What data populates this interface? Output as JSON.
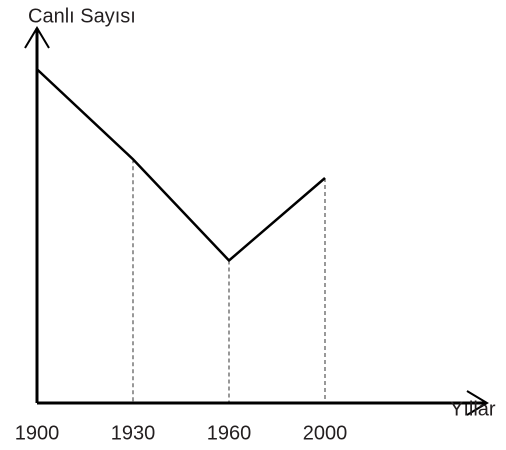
{
  "chart_data": {
    "type": "line",
    "ylabel": "Canlı Sayısı",
    "xlabel": "Yıllar",
    "categories": [
      "1900",
      "1930",
      "1960",
      "2000"
    ],
    "values": [
      89,
      65,
      38,
      60
    ],
    "ylim": [
      0,
      100
    ],
    "color": "#000000"
  }
}
